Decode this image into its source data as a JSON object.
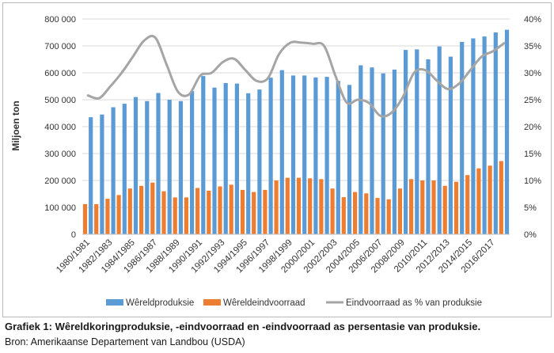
{
  "chart_data": {
    "type": "bar",
    "categories": [
      "1980/1981",
      "1981/1982",
      "1982/1983",
      "1983/1984",
      "1984/1985",
      "1985/1986",
      "1986/1987",
      "1987/1988",
      "1988/1989",
      "1989/1990",
      "1990/1991",
      "1991/1992",
      "1992/1993",
      "1993/1994",
      "1994/1995",
      "1995/1996",
      "1996/1997",
      "1997/1998",
      "1998/1999",
      "1999/2000",
      "2000/2001",
      "2001/2002",
      "2002/2003",
      "2003/2004",
      "2004/2005",
      "2005/2006",
      "2006/2007",
      "2007/2008",
      "2008/2009",
      "2009/2010",
      "2010/2011",
      "2011/2012",
      "2012/2013",
      "2013/2014",
      "2014/2015",
      "2015/2016",
      "2016/2017",
      "2017/2018"
    ],
    "tick_labels": [
      "1980/1981",
      "1982/1983",
      "1984/1985",
      "1986/1987",
      "1988/1989",
      "1990/1991",
      "1992/1993",
      "1994/1995",
      "1996/1997",
      "1998/1999",
      "2000/2001",
      "2002/2003",
      "2004/2005",
      "2006/2007",
      "2008/2009",
      "2010/2011",
      "2012/2013",
      "2014/2015",
      "2016/2017"
    ],
    "series": [
      {
        "name": "Wêreldproduksie",
        "axis": "left",
        "color": "#5b9bd5",
        "values": [
          435,
          445,
          472,
          485,
          510,
          495,
          525,
          500,
          495,
          532,
          588,
          545,
          562,
          560,
          524,
          538,
          582,
          610,
          590,
          590,
          583,
          585,
          570,
          555,
          628,
          620,
          598,
          612,
          685,
          687,
          650,
          698,
          660,
          715,
          728,
          735,
          750,
          760
        ]
      },
      {
        "name": "Wêreldeindvoorraad",
        "axis": "left",
        "color": "#ed7d31",
        "values": [
          112,
          112,
          132,
          146,
          170,
          180,
          192,
          160,
          137,
          137,
          172,
          162,
          178,
          184,
          165,
          157,
          165,
          200,
          210,
          210,
          208,
          205,
          170,
          138,
          157,
          152,
          135,
          130,
          170,
          205,
          200,
          200,
          180,
          195,
          220,
          245,
          255,
          272
        ]
      },
      {
        "name": "Eindvoorraad as % van produksie",
        "axis": "right",
        "color": "#a5a5a5",
        "values": [
          25.8,
          25.3,
          27.5,
          30,
          33,
          36,
          36.5,
          31.5,
          26.5,
          26,
          29.5,
          30,
          32,
          32.6,
          30.5,
          28.5,
          29,
          33.5,
          35.6,
          35.6,
          35.4,
          35,
          29.5,
          24.5,
          25,
          24.4,
          22,
          22.6,
          25.5,
          30,
          30.5,
          28.6,
          27,
          28,
          30.5,
          33,
          34,
          35.5
        ]
      }
    ],
    "ylabel": "Miljoen ton",
    "y_ticks": [
      "0",
      "100 000",
      "200 000",
      "300 000",
      "400 000",
      "500 000",
      "600 000",
      "700 000",
      "800 000"
    ],
    "y2_ticks": [
      "0%",
      "5%",
      "10%",
      "15%",
      "20%",
      "25%",
      "30%",
      "35%",
      "40%"
    ],
    "ylim": [
      0,
      800
    ],
    "y_unit_factor": 1000,
    "y2lim": [
      0,
      40
    ],
    "legend_position": "bottom",
    "grid": true
  },
  "caption": {
    "title": "Grafiek 1: Wêreldkoringproduksie, -eindvoorraad en -eindvoorraad as persentasie van produksie.",
    "source": "Bron: Amerikaanse Departement van Landbou (USDA)"
  }
}
